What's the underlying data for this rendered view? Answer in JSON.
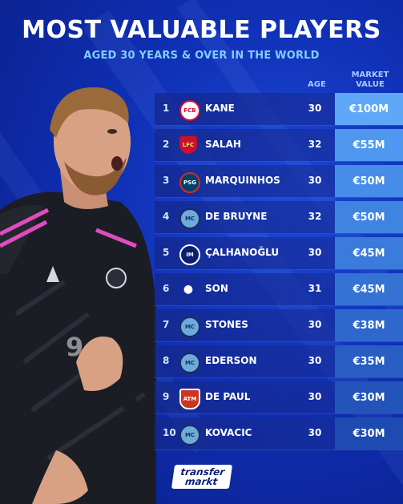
{
  "title": "MOST VALUABLE PLAYERS",
  "subtitle": "AGED 30 YEARS & OVER IN THE WORLD",
  "headers": {
    "age": "AGE",
    "market_value": "MARKET VALUE"
  },
  "rows": [
    {
      "rank": "1",
      "name": "KANE",
      "age": "30",
      "value": "€100M",
      "value_color": "#5fa8f7",
      "crest": "bayern"
    },
    {
      "rank": "2",
      "name": "SALAH",
      "age": "32",
      "value": "€55M",
      "value_color": "#4e98ef",
      "crest": "liverpool"
    },
    {
      "rank": "3",
      "name": "MARQUINHOS",
      "age": "30",
      "value": "€50M",
      "value_color": "#468de9",
      "crest": "psg"
    },
    {
      "rank": "4",
      "name": "DE BRUYNE",
      "age": "32",
      "value": "€50M",
      "value_color": "#4084e2",
      "crest": "man-city"
    },
    {
      "rank": "5",
      "name": "ÇALHANOĞLU",
      "age": "30",
      "value": "€45M",
      "value_color": "#3a7bdb",
      "crest": "inter"
    },
    {
      "rank": "6",
      "name": "SON",
      "age": "31",
      "value": "€45M",
      "value_color": "#3472d4",
      "crest": "tottenham"
    },
    {
      "rank": "7",
      "name": "STONES",
      "age": "30",
      "value": "€38M",
      "value_color": "#2e68cc",
      "crest": "man-city"
    },
    {
      "rank": "8",
      "name": "EDERSON",
      "age": "30",
      "value": "€35M",
      "value_color": "#285ec3",
      "crest": "man-city"
    },
    {
      "rank": "9",
      "name": "DE PAUL",
      "age": "30",
      "value": "€30M",
      "value_color": "#2254ba",
      "crest": "atletico"
    },
    {
      "rank": "10",
      "name": "KOVACIC",
      "age": "30",
      "value": "€30M",
      "value_color": "#1e4bb2",
      "crest": "man-city"
    }
  ],
  "brand": {
    "line1": "transfer",
    "line2": "markt"
  },
  "colors": {
    "background": "#0f2fb4",
    "subtitle": "#7fd0ff",
    "header": "#a9c8ff"
  }
}
